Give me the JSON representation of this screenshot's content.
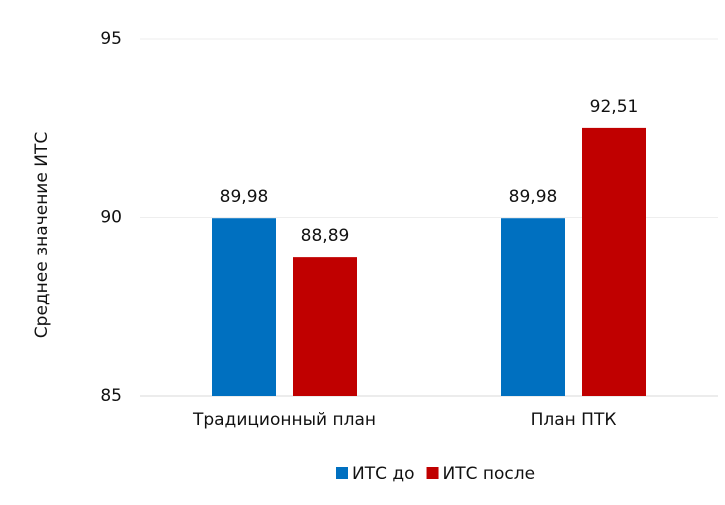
{
  "chart_data": {
    "type": "bar",
    "y_label": "Среднее значение ИТС",
    "categories": [
      "Традиционный план",
      "План ПТК"
    ],
    "series": [
      {
        "name": "ИТС до",
        "color": "#0070c0",
        "values": [
          89.98,
          89.98
        ],
        "value_labels": [
          "89,98",
          "89,98"
        ]
      },
      {
        "name": "ИТС после",
        "color": "#c00000",
        "values": [
          88.89,
          92.51
        ],
        "value_labels": [
          "88,89",
          "92,51"
        ]
      }
    ],
    "ylim": [
      85,
      95
    ],
    "yticks": [
      85,
      90,
      95
    ],
    "grid": true,
    "legend": "bottom"
  }
}
